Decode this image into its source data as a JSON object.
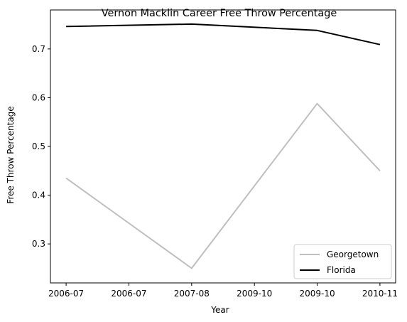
{
  "chart_data": {
    "type": "line",
    "title": "Vernon Macklin Career Free Throw Percentage",
    "xlabel": "Year",
    "ylabel": "Free Throw Percentage",
    "x_tick_labels": [
      "2006-07",
      "2006-07",
      "2007-08",
      "2009-10",
      "2009-10",
      "2010-11"
    ],
    "x_tick_positions": [
      0,
      0.5,
      1,
      1.5,
      2,
      2.5
    ],
    "ylim": [
      0.22,
      0.78
    ],
    "yticks": [
      0.3,
      0.4,
      0.5,
      0.6,
      0.7
    ],
    "y_tick_labels": [
      "0.3",
      "0.4",
      "0.5",
      "0.6",
      "0.7"
    ],
    "grid": false,
    "legend_position": "lower-right",
    "series": [
      {
        "name": "Georgetown",
        "color": "#bfbfbf",
        "x": [
          0,
          1,
          2,
          2.5
        ],
        "values": [
          0.435,
          0.25,
          0.588,
          0.45
        ]
      },
      {
        "name": "Florida",
        "color": "#000000",
        "x": [
          0,
          1,
          2,
          2.5
        ],
        "values": [
          0.746,
          0.751,
          0.738,
          0.709
        ]
      }
    ]
  }
}
